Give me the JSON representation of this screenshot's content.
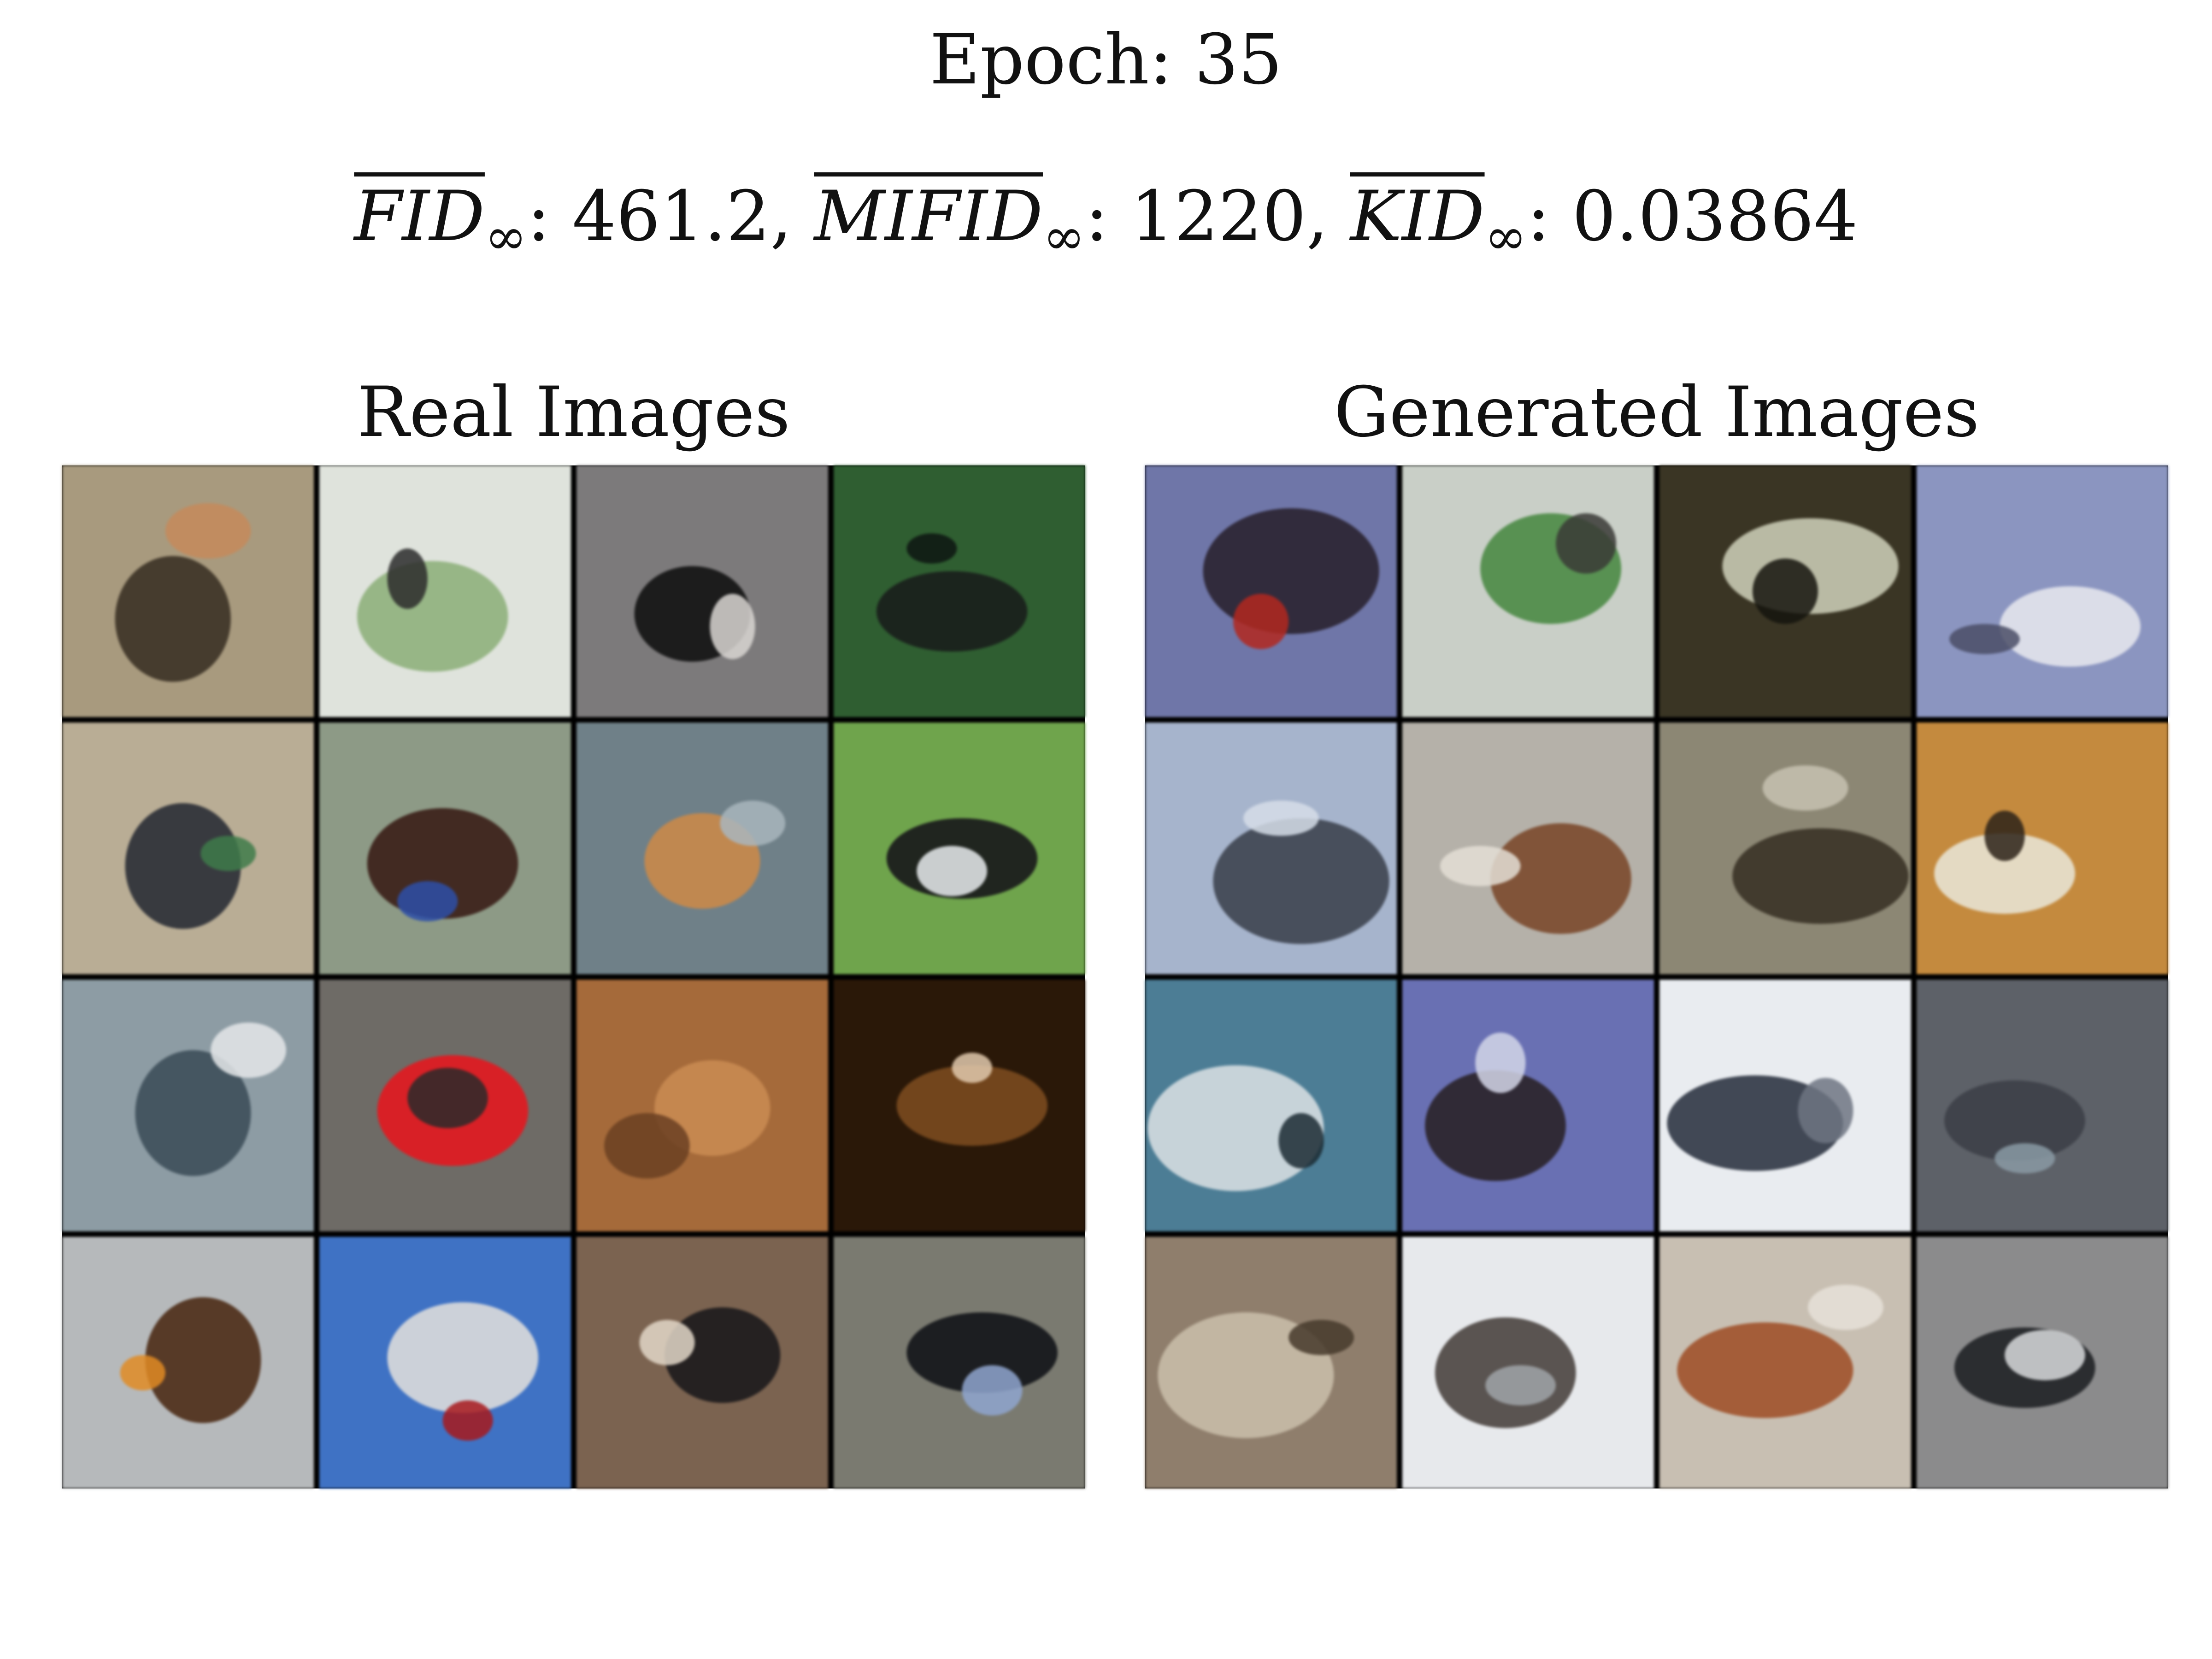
{
  "header": {
    "epoch_label": "Epoch: 35",
    "metrics": [
      {
        "name": "FID",
        "sub": "∞",
        "value": ": 461.2, "
      },
      {
        "name": "MIFID",
        "sub": "∞",
        "value": ": 1220, "
      },
      {
        "name": "KID",
        "sub": "∞",
        "value": ": 0.03864"
      }
    ]
  },
  "panels": {
    "real": {
      "title": "Real Images",
      "tiles": [
        {
          "bg": "#a89a7e",
          "fg": "#3b3226",
          "accent": "#c58a5a"
        },
        {
          "bg": "#dfe3dc",
          "fg": "#8fb07c",
          "accent": "#2b2b2b"
        },
        {
          "bg": "#7c7a7b",
          "fg": "#121212",
          "accent": "#d9d6d2"
        },
        {
          "bg": "#2f5e31",
          "fg": "#1a1e1c",
          "accent": "#0d1512"
        },
        {
          "bg": "#b9ad95",
          "fg": "#2a2d35",
          "accent": "#3e7b4a"
        },
        {
          "bg": "#8d9a86",
          "fg": "#3a1e17",
          "accent": "#2d4fa8"
        },
        {
          "bg": "#6f8088",
          "fg": "#c9884a",
          "accent": "#a9b6bd"
        },
        {
          "bg": "#6fa44c",
          "fg": "#17171b",
          "accent": "#e9ecee"
        },
        {
          "bg": "#8d9ca4",
          "fg": "#3d4f5a",
          "accent": "#e5e8ea"
        },
        {
          "bg": "#6e6b66",
          "fg": "#e3181f",
          "accent": "#2a2a2a"
        },
        {
          "bg": "#a56a3a",
          "fg": "#c98b52",
          "accent": "#6a3f22"
        },
        {
          "bg": "#2a1808",
          "fg": "#7a4a1f",
          "accent": "#e0c9ad"
        },
        {
          "bg": "#b6b9bb",
          "fg": "#4d2c17",
          "accent": "#e08b24"
        },
        {
          "bg": "#3f72c4",
          "fg": "#dcdcdc",
          "accent": "#a7191c"
        },
        {
          "bg": "#7b6350",
          "fg": "#1c1a1c",
          "accent": "#e3d7c8"
        },
        {
          "bg": "#7a7a70",
          "fg": "#121418",
          "accent": "#8fa6cf"
        }
      ]
    },
    "generated": {
      "title": "Generated Images",
      "tiles": [
        {
          "bg": "#6f76a8",
          "fg": "#2a2430",
          "accent": "#b3281e"
        },
        {
          "bg": "#c9cfc7",
          "fg": "#4b8a45",
          "accent": "#3a3a36"
        },
        {
          "bg": "#3a3524",
          "fg": "#c8c9b3",
          "accent": "#15140e"
        },
        {
          "bg": "#8b95c0",
          "fg": "#e3e4ec",
          "accent": "#4a4d66"
        },
        {
          "bg": "#a6b4cc",
          "fg": "#3e4450",
          "accent": "#d6dde8"
        },
        {
          "bg": "#b5b1a9",
          "fg": "#7b4a2c",
          "accent": "#e4dfd6"
        },
        {
          "bg": "#8c8774",
          "fg": "#3a3327",
          "accent": "#c7c2b2"
        },
        {
          "bg": "#c48a3e",
          "fg": "#e8e2d2",
          "accent": "#2d2219"
        },
        {
          "bg": "#4c7d95",
          "fg": "#d5dde0",
          "accent": "#1b2a33"
        },
        {
          "bg": "#6970b3",
          "fg": "#2a2228",
          "accent": "#d4d6e8"
        },
        {
          "bg": "#e9ecf0",
          "fg": "#2f3644",
          "accent": "#6f7583"
        },
        {
          "bg": "#5d6168",
          "fg": "#3d4048",
          "accent": "#8a9aa5"
        },
        {
          "bg": "#8f7e6c",
          "fg": "#c8bca9",
          "accent": "#473a2c"
        },
        {
          "bg": "#e7e9ec",
          "fg": "#4a4440",
          "accent": "#a0a4a8"
        },
        {
          "bg": "#c8bfb2",
          "fg": "#a0522b",
          "accent": "#e6e0d8"
        },
        {
          "bg": "#8b8b8c",
          "fg": "#202226",
          "accent": "#d8dadc"
        }
      ]
    }
  }
}
